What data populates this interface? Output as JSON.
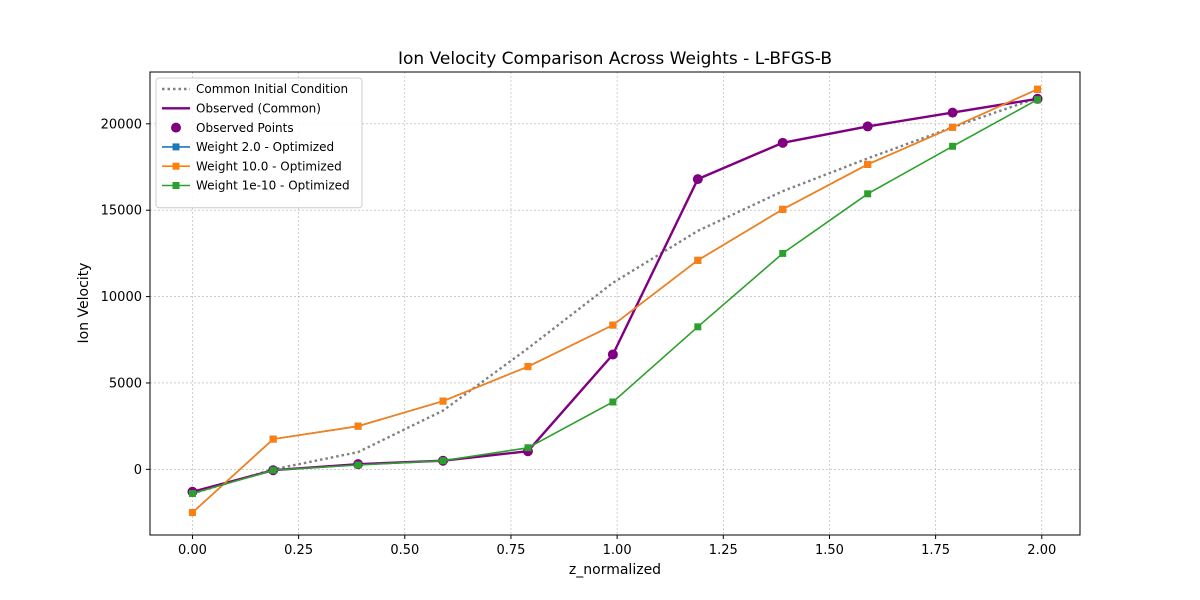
{
  "chart_data": {
    "type": "line",
    "title": "Ion Velocity Comparison Across Weights - L-BFGS-B",
    "xlabel": "z_normalized",
    "ylabel": "Ion Velocity",
    "xlim": [
      -0.1,
      2.09
    ],
    "ylim": [
      -3800,
      23000
    ],
    "xticks": [
      "0.00",
      "0.25",
      "0.50",
      "0.75",
      "1.00",
      "1.25",
      "1.50",
      "1.75",
      "2.00"
    ],
    "yticks": [
      "0",
      "5000",
      "10000",
      "15000",
      "20000"
    ],
    "grid": true,
    "legend_position": "top-left",
    "x": [
      0.0,
      0.19,
      0.39,
      0.59,
      0.79,
      0.99,
      1.19,
      1.39,
      1.59,
      1.79,
      1.99
    ],
    "series": [
      {
        "name": "Common Initial Condition",
        "style": "dotted",
        "color": "#808080",
        "values": [
          -1400,
          0,
          1000,
          3400,
          7000,
          10800,
          13800,
          16100,
          18000,
          19800,
          21500
        ]
      },
      {
        "name": "Observed (Common)",
        "style": "solid",
        "color": "#800080",
        "values": [
          -1300,
          -50,
          300,
          500,
          1050,
          6650,
          16800,
          18900,
          19850,
          20650,
          21450
        ]
      },
      {
        "name": "Observed Points",
        "style": "markers",
        "color": "#800080",
        "values": [
          -1300,
          -50,
          300,
          500,
          1050,
          6650,
          16800,
          18900,
          19850,
          20650,
          21450
        ]
      },
      {
        "name": "Weight 2.0 - Optimized",
        "style": "line-square",
        "color": "#1f77b4",
        "values": [
          -2500,
          1750,
          2500,
          3950,
          5950,
          8350,
          12100,
          15050,
          17650,
          19800,
          22000
        ]
      },
      {
        "name": "Weight 10.0 - Optimized",
        "style": "line-square",
        "color": "#ff7f0e",
        "values": [
          -2500,
          1750,
          2500,
          3950,
          5950,
          8350,
          12100,
          15050,
          17650,
          19800,
          22000
        ]
      },
      {
        "name": "Weight 1e-10 - Optimized",
        "style": "line-square",
        "color": "#2ca02c",
        "values": [
          -1400,
          -50,
          250,
          500,
          1250,
          3900,
          8250,
          12500,
          15950,
          18700,
          21400
        ]
      }
    ]
  }
}
